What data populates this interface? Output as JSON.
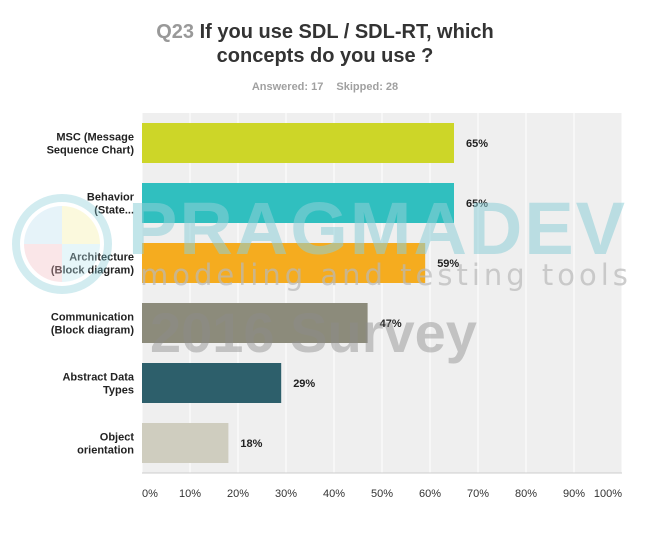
{
  "header": {
    "question_number": "Q23",
    "question_text": "If you use SDL / SDL-RT, which",
    "question_text_line2": "concepts do you use ?",
    "answered": "Answered: 17",
    "skipped": "Skipped: 28"
  },
  "watermark": {
    "brand": "PRAGMADEV",
    "tagline": "modeling and testing tools",
    "survey": "2016 Survey",
    "logo_colors": [
      "#b8dff0",
      "#f5f0a0",
      "#f2b8c0",
      "#b8e6ef"
    ]
  },
  "chart_data": {
    "type": "bar",
    "orientation": "horizontal",
    "categories": [
      [
        "MSC (Message",
        "Sequence Chart)"
      ],
      [
        "Behavior",
        "(State..."
      ],
      [
        "Architecture",
        "(Block diagram)"
      ],
      [
        "Communication",
        "(Block diagram)"
      ],
      [
        "Abstract Data",
        "Types"
      ],
      [
        "Object",
        "orientation"
      ]
    ],
    "values": [
      65,
      65,
      59,
      47,
      29,
      18
    ],
    "value_labels": [
      "65%",
      "65%",
      "59%",
      "47%",
      "29%",
      "18%"
    ],
    "colors": [
      "#cdd628",
      "#30bfbf",
      "#f5ac1f",
      "#8c8b7b",
      "#2d5f6b",
      "#cfcdbf"
    ],
    "xlim": [
      0,
      100
    ],
    "xticks": [
      "0%",
      "10%",
      "20%",
      "30%",
      "40%",
      "50%",
      "60%",
      "70%",
      "80%",
      "90%",
      "100%"
    ],
    "grid": true,
    "legend": "none",
    "plot_background": "#efefef"
  }
}
